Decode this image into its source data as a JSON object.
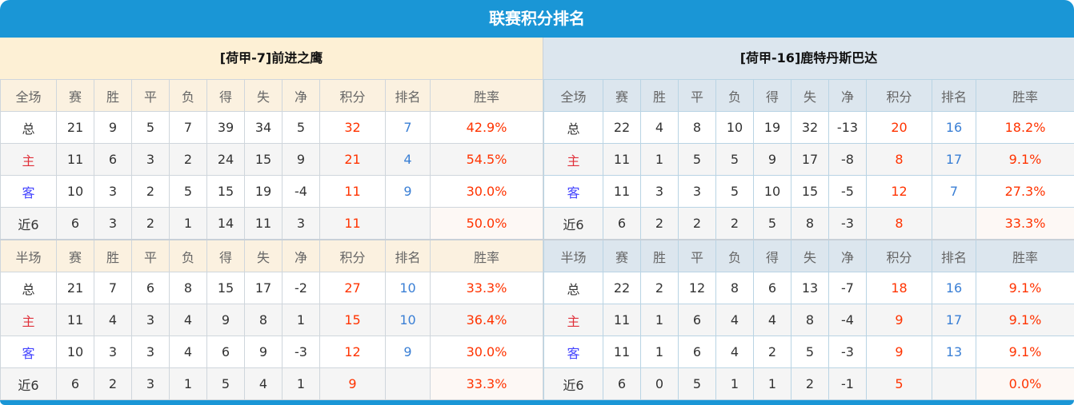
{
  "title": "联赛积分排名",
  "colors": {
    "header": "#1a96d6",
    "points": "#ff3300",
    "rank": "#3a7fd5"
  },
  "teams": [
    {
      "name": "[荷甲-7]前进之鹰",
      "sections": [
        {
          "header": [
            "全场",
            "赛",
            "胜",
            "平",
            "负",
            "得",
            "失",
            "净",
            "积分",
            "排名",
            "胜率"
          ],
          "rows": [
            [
              "总",
              "21",
              "9",
              "5",
              "7",
              "39",
              "34",
              "5",
              "32",
              "7",
              "42.9%"
            ],
            [
              "主",
              "11",
              "6",
              "3",
              "2",
              "24",
              "15",
              "9",
              "21",
              "4",
              "54.5%"
            ],
            [
              "客",
              "10",
              "3",
              "2",
              "5",
              "15",
              "19",
              "-4",
              "11",
              "9",
              "30.0%"
            ],
            [
              "近6",
              "6",
              "3",
              "2",
              "1",
              "14",
              "11",
              "3",
              "11",
              "",
              "50.0%"
            ]
          ]
        },
        {
          "header": [
            "半场",
            "赛",
            "胜",
            "平",
            "负",
            "得",
            "失",
            "净",
            "积分",
            "排名",
            "胜率"
          ],
          "rows": [
            [
              "总",
              "21",
              "7",
              "6",
              "8",
              "15",
              "17",
              "-2",
              "27",
              "10",
              "33.3%"
            ],
            [
              "主",
              "11",
              "4",
              "3",
              "4",
              "9",
              "8",
              "1",
              "15",
              "10",
              "36.4%"
            ],
            [
              "客",
              "10",
              "3",
              "3",
              "4",
              "6",
              "9",
              "-3",
              "12",
              "9",
              "30.0%"
            ],
            [
              "近6",
              "6",
              "2",
              "3",
              "1",
              "5",
              "4",
              "1",
              "9",
              "",
              "33.3%"
            ]
          ]
        }
      ]
    },
    {
      "name": "[荷甲-16]鹿特丹斯巴达",
      "sections": [
        {
          "header": [
            "全场",
            "赛",
            "胜",
            "平",
            "负",
            "得",
            "失",
            "净",
            "积分",
            "排名",
            "胜率"
          ],
          "rows": [
            [
              "总",
              "22",
              "4",
              "8",
              "10",
              "19",
              "32",
              "-13",
              "20",
              "16",
              "18.2%"
            ],
            [
              "主",
              "11",
              "1",
              "5",
              "5",
              "9",
              "17",
              "-8",
              "8",
              "17",
              "9.1%"
            ],
            [
              "客",
              "11",
              "3",
              "3",
              "5",
              "10",
              "15",
              "-5",
              "12",
              "7",
              "27.3%"
            ],
            [
              "近6",
              "6",
              "2",
              "2",
              "2",
              "5",
              "8",
              "-3",
              "8",
              "",
              "33.3%"
            ]
          ]
        },
        {
          "header": [
            "半场",
            "赛",
            "胜",
            "平",
            "负",
            "得",
            "失",
            "净",
            "积分",
            "排名",
            "胜率"
          ],
          "rows": [
            [
              "总",
              "22",
              "2",
              "12",
              "8",
              "6",
              "13",
              "-7",
              "18",
              "16",
              "9.1%"
            ],
            [
              "主",
              "11",
              "1",
              "6",
              "4",
              "4",
              "8",
              "-4",
              "9",
              "17",
              "9.1%"
            ],
            [
              "客",
              "11",
              "1",
              "6",
              "4",
              "2",
              "5",
              "-3",
              "9",
              "13",
              "9.1%"
            ],
            [
              "近6",
              "6",
              "0",
              "5",
              "1",
              "1",
              "2",
              "-1",
              "5",
              "",
              "0.0%"
            ]
          ]
        }
      ]
    }
  ]
}
